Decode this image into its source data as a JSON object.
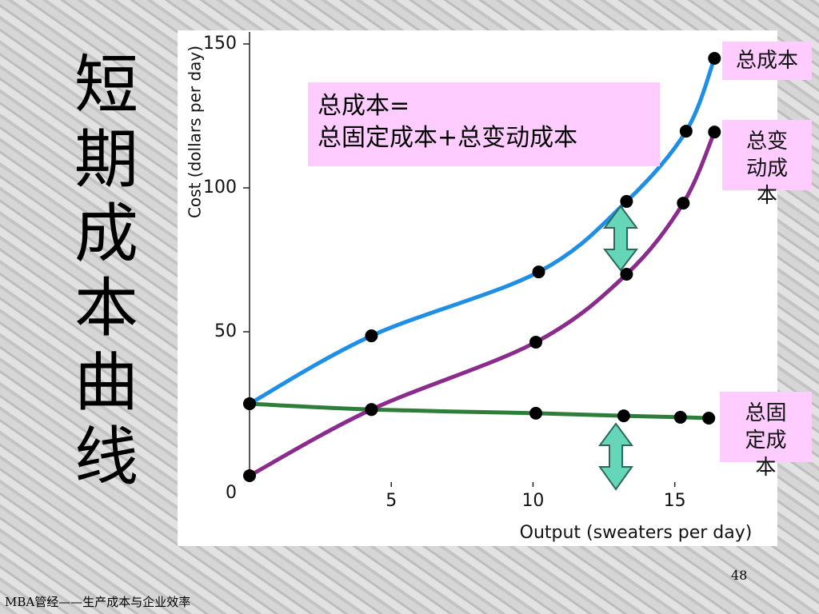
{
  "slide_title": "短期成本曲线",
  "footer": "MBA管经——生产成本与企业效率",
  "page_number": "48",
  "chart_data": {
    "type": "line",
    "x_label": "Output (sweaters per day)",
    "y_label": "Cost (dollars per day)",
    "annotation": [
      "总成本=",
      "总固定成本+总变动成本"
    ],
    "xlim": [
      0,
      18
    ],
    "ylim": [
      0,
      150
    ],
    "xticks": [
      5,
      10,
      15
    ],
    "yticks": [
      0,
      50,
      100,
      150
    ],
    "series": [
      {
        "name": "总成本",
        "color": "#1f8fe6",
        "x": [
          0,
          4.3,
          10.2,
          13.3,
          15.4,
          16.4
        ],
        "values": [
          25,
          48.6,
          70.8,
          95.3,
          119.7,
          145
        ]
      },
      {
        "name": "总变动成本",
        "color": "#8a2c8c",
        "x": [
          0,
          4.3,
          10.1,
          13.3,
          15.3,
          16.4
        ],
        "values": [
          0,
          23,
          46.4,
          70,
          94.7,
          119.4
        ]
      },
      {
        "name": "总固定成本",
        "color": "#2f7d3a",
        "x": [
          0,
          4.3,
          10.1,
          13.2,
          15.2,
          16.2
        ],
        "values": [
          25,
          23,
          21.7,
          20.8,
          20.3,
          20
        ]
      }
    ]
  }
}
